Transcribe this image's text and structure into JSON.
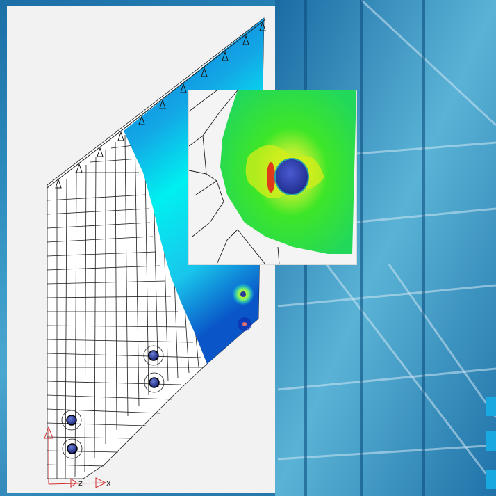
{
  "figure": {
    "axis_labels": {
      "z": "z",
      "x": "x"
    },
    "colors": {
      "background": "#2f8fc0",
      "panel": "#f2f2f2",
      "mesh": "#1a1a1a",
      "stress_low": "#0a7fd8",
      "stress_mid": "#00e6ea",
      "stress_high": "#2ee01e",
      "stress_peak": "#e8f000",
      "hole": "#2a3a9a",
      "axis": "#d03030"
    },
    "icons": {
      "support": "pin-support-icon",
      "hole": "bolt-hole-icon",
      "triad": "coordinate-triad-icon"
    }
  }
}
